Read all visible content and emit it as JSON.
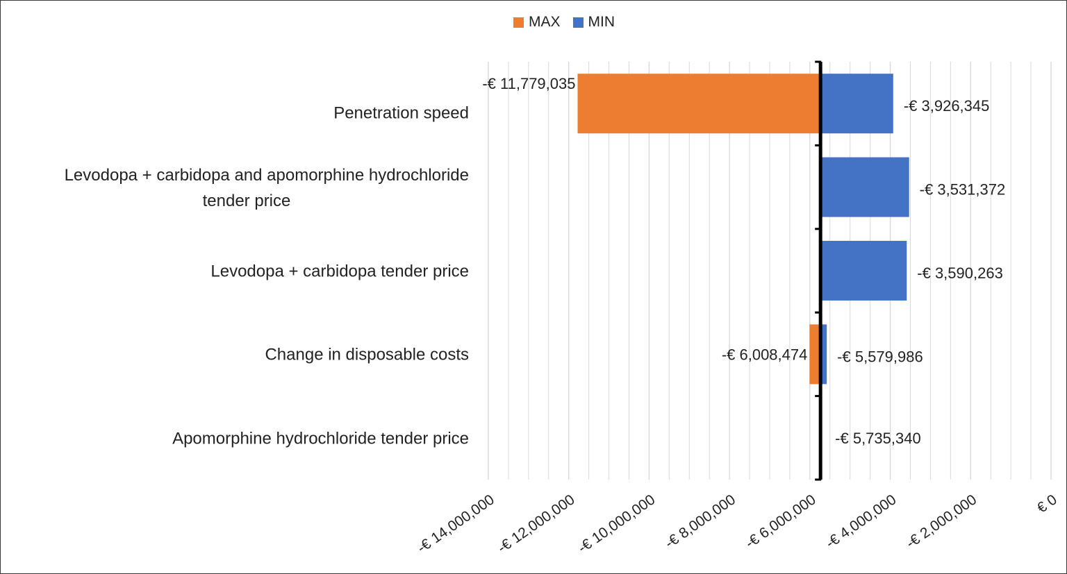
{
  "colors": {
    "max": "#ED7D31",
    "min": "#4472C4",
    "baseline": "#000000",
    "grid": "#d9d9d9"
  },
  "chart_data": {
    "type": "bar",
    "orientation": "horizontal",
    "subtype": "tornado",
    "title": "",
    "xlabel": "",
    "ylabel": "",
    "baseline": -5735340,
    "xlim": [
      -14000000,
      0
    ],
    "x_ticks": [
      -14000000,
      -12000000,
      -10000000,
      -8000000,
      -6000000,
      -4000000,
      -2000000,
      0
    ],
    "x_tick_labels": [
      "-€ 14,000,000",
      "-€ 12,000,000",
      "-€ 10,000,000",
      "-€ 8,000,000",
      "-€ 6,000,000",
      "-€ 4,000,000",
      "-€ 2,000,000",
      "€ 0"
    ],
    "grid": true,
    "legend_position": "top-center",
    "categories": [
      "Penetration speed",
      "Levodopa + carbidopa and apomorphine hydrochloride tender price",
      "Levodopa + carbidopa tender price",
      "Change  in disposable costs",
      "Apomorphine hydrochloride tender price"
    ],
    "category_label_lines": [
      [
        "Penetration speed"
      ],
      [
        "Levodopa + carbidopa and apomorphine hydrochloride",
        "tender price"
      ],
      [
        "Levodopa + carbidopa tender price"
      ],
      [
        "Change  in disposable costs"
      ],
      [
        "Apomorphine hydrochloride tender price"
      ]
    ],
    "series": [
      {
        "name": "MAX",
        "values": [
          -11779035,
          null,
          null,
          -6008474,
          null
        ],
        "labels": [
          "-€ 11,779,035",
          "",
          "",
          "-€ 6,008,474",
          ""
        ]
      },
      {
        "name": "MIN",
        "values": [
          -3926345,
          -3531372,
          -3590263,
          -5579986,
          null
        ],
        "labels": [
          "-€ 3,926,345",
          "-€ 3,531,372",
          "-€ 3,590,263",
          "-€ 5,579,986",
          ""
        ]
      }
    ],
    "baseline_label": "-€ 5,735,340"
  }
}
